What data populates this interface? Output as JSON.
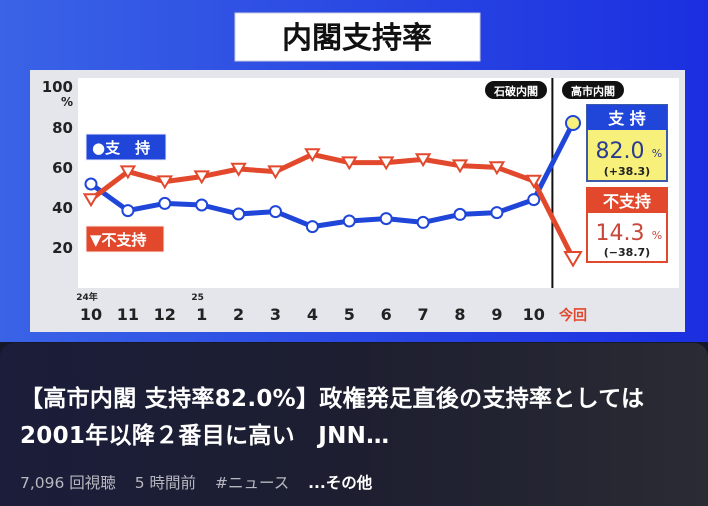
{
  "video": {
    "banner_title": "内閣支持率",
    "era_labels": [
      "石破内閣",
      "高市内閣"
    ],
    "legend": {
      "support": "●支　持",
      "nonsupport": "▼不支持"
    },
    "summary": {
      "support": {
        "label": "支 持",
        "value": "82.0",
        "unit": "%",
        "change": "(+38.3)"
      },
      "nonsupport": {
        "label": "不支持",
        "value": "14.3",
        "unit": "%",
        "change": "(−38.7)"
      }
    }
  },
  "chart_data": {
    "type": "line",
    "title": "内閣支持率",
    "ylabel": "%",
    "ylim": [
      0,
      100
    ],
    "yticks": [
      20,
      40,
      60,
      80,
      100
    ],
    "year_labels": [
      {
        "index": 0,
        "text": "24年"
      },
      {
        "index": 3,
        "text": "25"
      }
    ],
    "categories": [
      "10",
      "11",
      "12",
      "1",
      "2",
      "3",
      "4",
      "5",
      "6",
      "7",
      "8",
      "9",
      "10",
      "今回"
    ],
    "series": [
      {
        "name": "支持",
        "color": "#1f46d8",
        "marker": "circle",
        "values": [
          51.5,
          38.2,
          41.8,
          41.0,
          36.5,
          37.7,
          30.2,
          33.0,
          34.2,
          32.3,
          36.3,
          37.2,
          43.7,
          82.0
        ]
      },
      {
        "name": "不支持",
        "color": "#e2482c",
        "marker": "triangle-down",
        "values": [
          43.8,
          57.7,
          52.7,
          55.2,
          59.0,
          57.7,
          66.3,
          62.2,
          62.2,
          63.8,
          60.7,
          59.8,
          53.0,
          14.3
        ]
      }
    ],
    "divider_after_index": 12,
    "grid": false
  },
  "info": {
    "title": "【高市内閣 支持率82.0%】政権発足直後の支持率としては2001年以降２番目に高い　JNN…",
    "views": "7,096 回視聴",
    "age": "5 時間前",
    "hashtag": "#ニュース",
    "more": "...その他"
  },
  "colors": {
    "background_blue": "#2747e0",
    "support": "#1f46d8",
    "nonsupport": "#e2482c",
    "highlight_yellow": "#f7f07a"
  }
}
